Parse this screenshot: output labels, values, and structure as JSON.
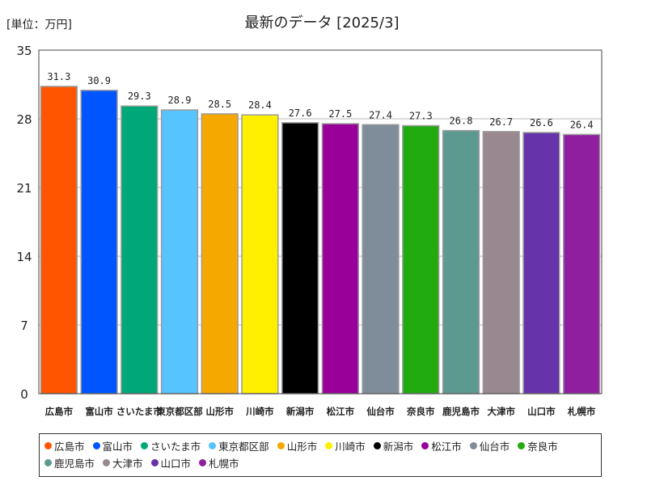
{
  "chart_data": {
    "type": "bar",
    "title": "最新のデータ [2025/3]",
    "unit_label": "[単位：万円]",
    "categories": [
      "広島市",
      "富山市",
      "さいたま市",
      "東京都区部",
      "山形市",
      "川崎市",
      "新潟市",
      "松江市",
      "仙台市",
      "奈良市",
      "鹿児島市",
      "大津市",
      "山口市",
      "札幌市"
    ],
    "values": [
      31.3,
      30.9,
      29.3,
      28.9,
      28.5,
      28.4,
      27.6,
      27.5,
      27.4,
      27.3,
      26.8,
      26.7,
      26.6,
      26.4
    ],
    "value_labels": [
      "31.3",
      "30.9",
      "29.3",
      "28.9",
      "28.5",
      "28.4",
      "27.6",
      "27.5",
      "27.4",
      "27.3",
      "26.8",
      "26.7",
      "26.6",
      "26.4"
    ],
    "colors": [
      "#ff5500",
      "#0055ff",
      "#00a878",
      "#55c4ff",
      "#f5a800",
      "#fff000",
      "#000000",
      "#990099",
      "#7f8c99",
      "#22aa11",
      "#5c9a90",
      "#998890",
      "#6633aa",
      "#8f1f9f"
    ],
    "ylim": [
      0,
      35
    ],
    "yticks": [
      0,
      7,
      14,
      21,
      28,
      35
    ],
    "ytick_labels": [
      "0",
      "7",
      "14",
      "21",
      "28",
      "35"
    ],
    "grid": true,
    "legend_position": "bottom"
  }
}
